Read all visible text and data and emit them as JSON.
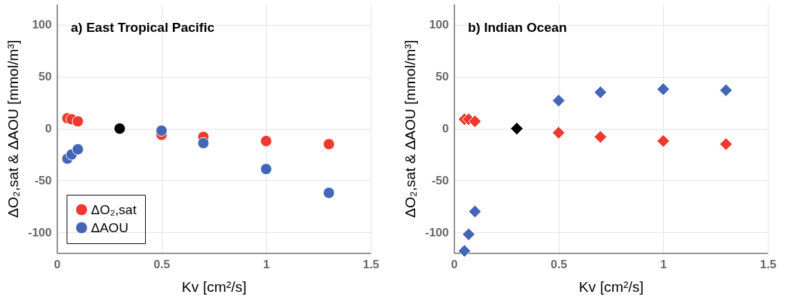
{
  "chart_data": [
    {
      "type": "scatter",
      "title": "a) East Tropical Pacific",
      "xlabel": "Kv [cm²/s]",
      "ylabel": "ΔO₂,sat & ΔAOU [mmol/m³]",
      "xlim": [
        0,
        1.5
      ],
      "xticks": [
        0,
        0.5,
        1,
        1.5
      ],
      "ylim": [
        -120,
        120
      ],
      "yticks": [
        -100,
        -50,
        0,
        50,
        100
      ],
      "grid": true,
      "marker": "circle",
      "legend": "bottom left",
      "series": [
        {
          "name": "ΔO₂,sat",
          "color": "#ee3a2e",
          "x": [
            0.05,
            0.07,
            0.1,
            0.5,
            0.7,
            1,
            1.3
          ],
          "values": [
            10,
            9,
            7,
            -6,
            -8,
            -12,
            -15
          ]
        },
        {
          "name": "ΔAOU",
          "color": "#4466b6",
          "x": [
            0.05,
            0.07,
            0.1,
            0.5,
            0.7,
            1,
            1.3
          ],
          "values": [
            -29,
            -25,
            -20,
            -2,
            -14,
            -39,
            -62
          ]
        },
        {
          "color": "#000000",
          "x": [
            0.3
          ],
          "values": [
            0
          ]
        }
      ]
    },
    {
      "type": "scatter",
      "title": "b) Indian Ocean",
      "xlabel": "Kv [cm²/s]",
      "ylabel": "ΔO₂,sat & ΔAOU [mmol/m³]",
      "xlim": [
        0,
        1.5
      ],
      "xticks": [
        0,
        0.5,
        1,
        1.5
      ],
      "ylim": [
        -120,
        120
      ],
      "yticks": [
        -100,
        -50,
        0,
        50,
        100
      ],
      "grid": true,
      "marker": "diamond",
      "series": [
        {
          "color": "#ee3a2e",
          "x": [
            0.05,
            0.07,
            0.1,
            0.5,
            0.7,
            1,
            1.3
          ],
          "values": [
            9,
            9,
            7,
            -4,
            -8,
            -12,
            -15
          ]
        },
        {
          "color": "#4466b6",
          "x": [
            0.05,
            0.07,
            0.1,
            0.5,
            0.7,
            1,
            1.3
          ],
          "values": [
            -118,
            -102,
            -80,
            27,
            35,
            38,
            37
          ]
        },
        {
          "color": "#000000",
          "x": [
            0.3
          ],
          "values": [
            0
          ]
        }
      ]
    }
  ]
}
